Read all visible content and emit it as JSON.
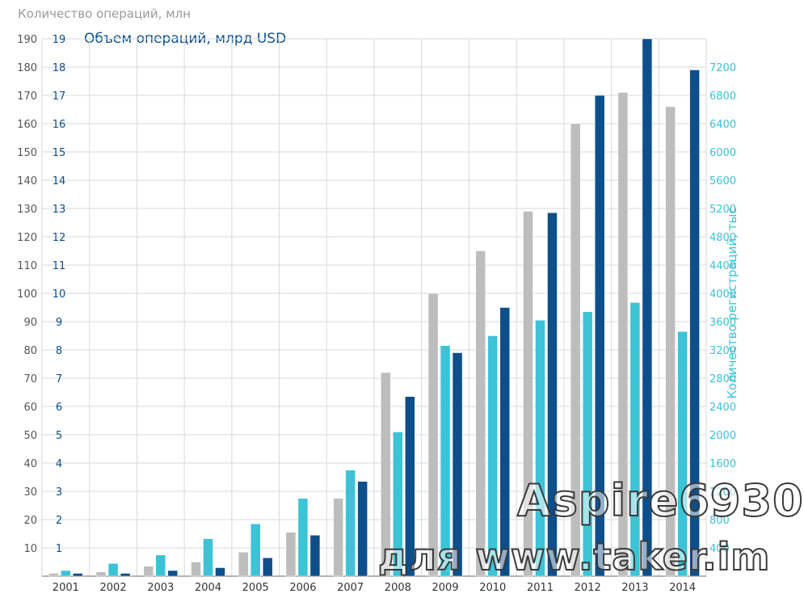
{
  "titles": {
    "left_axis": "Количество операций, млн",
    "blue_axis": "Объем операций, млрд USD",
    "right_axis": "Количество регистраций, тыс"
  },
  "colors": {
    "count": "#bdbdbd",
    "registrations": "#3cc3d6",
    "volume": "#0d4f8b",
    "grid": "#d9d9d9",
    "axis_text_gray": "#555555",
    "axis_text_blue": "#0d4f8b",
    "axis_text_cyan": "#3cc3d6"
  },
  "watermark": {
    "line1": "Aspire6930",
    "line2": "для www.taker.im"
  },
  "chart_data": {
    "type": "bar",
    "categories": [
      "2001",
      "2002",
      "2003",
      "2004",
      "2005",
      "2006",
      "2007",
      "2008",
      "2009",
      "2010",
      "2011",
      "2012",
      "2013",
      "2014"
    ],
    "series": [
      {
        "name": "Количество операций, млн",
        "axis": "left",
        "color": "#bdbdbd",
        "values": [
          1,
          1.5,
          3.5,
          5,
          8.5,
          15.5,
          27.5,
          72,
          100,
          115,
          129,
          160,
          171,
          166
        ]
      },
      {
        "name": "Количество регистраций, тыс",
        "axis": "right",
        "color": "#3cc3d6",
        "values": [
          80,
          180,
          300,
          530,
          740,
          1100,
          1500,
          2040,
          3260,
          3400,
          3620,
          3740,
          3870,
          3460
        ]
      },
      {
        "name": "Объем операций, млрд USD",
        "axis": "blue",
        "color": "#0d4f8b",
        "values": [
          0.1,
          0.1,
          0.2,
          0.3,
          0.65,
          1.45,
          3.35,
          6.35,
          7.9,
          9.5,
          12.85,
          17,
          19,
          17.9
        ]
      }
    ],
    "left_axis": {
      "ylim": [
        0,
        190
      ],
      "ticks": [
        "10",
        "20",
        "30",
        "40",
        "50",
        "60",
        "70",
        "80",
        "90",
        "100",
        "110",
        "120",
        "130",
        "140",
        "150",
        "160",
        "170",
        "180",
        "190"
      ]
    },
    "blue_axis": {
      "ylim": [
        0,
        19
      ],
      "ticks": [
        "1",
        "2",
        "3",
        "4",
        "5",
        "6",
        "7",
        "8",
        "9",
        "10",
        "11",
        "12",
        "13",
        "14",
        "15",
        "16",
        "17",
        "18",
        "19"
      ]
    },
    "right_axis": {
      "ylim": [
        0,
        7600
      ],
      "ticks": [
        "400",
        "800",
        "1200",
        "1600",
        "2000",
        "2400",
        "2800",
        "3200",
        "3600",
        "4000",
        "4400",
        "4800",
        "5200",
        "5600",
        "6000",
        "6400",
        "6800",
        "7200"
      ]
    },
    "grid": true
  }
}
